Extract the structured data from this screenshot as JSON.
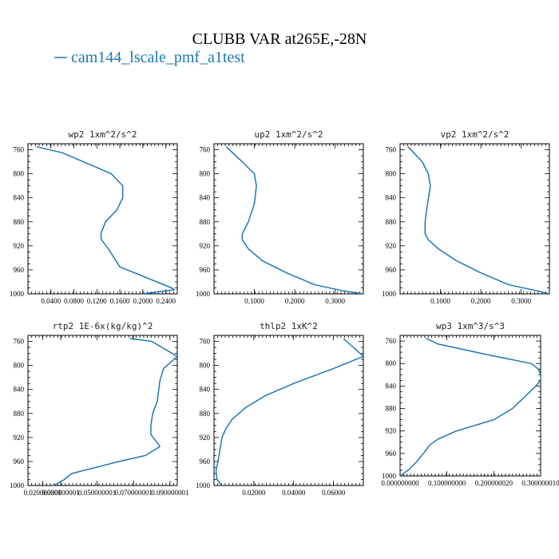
{
  "figure": {
    "title": "CLUBB VAR at265E,-28N",
    "legend": "cam144_lscale_pmf_a1test",
    "line_color": "#1f77b4"
  },
  "chart_data": [
    {
      "type": "line",
      "title": "wp2   1xm^2/s^2",
      "series": [
        {
          "name": "cam144_lscale_pmf_a1test",
          "x": [
            0.015,
            0.06,
            0.145,
            0.165,
            0.165,
            0.155,
            0.135,
            0.127,
            0.128,
            0.14,
            0.16,
            0.25,
            0.255,
            0.2
          ],
          "y": [
            755,
            765,
            800,
            820,
            840,
            860,
            880,
            900,
            910,
            925,
            955,
            990,
            993,
            1000
          ]
        }
      ],
      "xlim": [
        0.0,
        0.26
      ],
      "ylim": [
        1000,
        750
      ],
      "xticks": [
        0.04,
        0.08,
        0.12,
        0.16,
        0.2,
        0.24
      ],
      "xticklabels": [
        "0.0400",
        "0.0800",
        "0.1200",
        "0.1600",
        "0.2000",
        "0.2400"
      ],
      "yticks": [
        760,
        800,
        840,
        880,
        920,
        960,
        1000
      ],
      "yticklabels": [
        "760",
        "800",
        "840",
        "880",
        "920",
        "960",
        "1000"
      ]
    },
    {
      "type": "line",
      "title": "up2   1xm^2/s^2",
      "series": [
        {
          "name": "cam144_lscale_pmf_a1test",
          "x": [
            0.03,
            0.07,
            0.1,
            0.105,
            0.1,
            0.085,
            0.07,
            0.07,
            0.085,
            0.12,
            0.18,
            0.25,
            0.32,
            0.37
          ],
          "y": [
            755,
            780,
            800,
            820,
            850,
            880,
            900,
            910,
            925,
            945,
            965,
            985,
            995,
            1000
          ]
        }
      ],
      "xlim": [
        0.0,
        0.37
      ],
      "ylim": [
        1000,
        750
      ],
      "xticks": [
        0.1,
        0.2,
        0.3
      ],
      "xticklabels": [
        "0.1000",
        "0.2000",
        "0.3000"
      ],
      "yticks": [
        760,
        800,
        840,
        880,
        920,
        960,
        1000
      ],
      "yticklabels": [
        "760",
        "800",
        "840",
        "880",
        "920",
        "960",
        "1000"
      ]
    },
    {
      "type": "line",
      "title": "vp2   1xm^2/s^2",
      "series": [
        {
          "name": "cam144_lscale_pmf_a1test",
          "x": [
            0.02,
            0.055,
            0.07,
            0.075,
            0.068,
            0.062,
            0.062,
            0.07,
            0.095,
            0.14,
            0.2,
            0.27,
            0.34,
            0.37
          ],
          "y": [
            755,
            780,
            800,
            820,
            850,
            880,
            900,
            910,
            925,
            945,
            965,
            985,
            995,
            1000
          ]
        }
      ],
      "xlim": [
        0.0,
        0.37
      ],
      "ylim": [
        1000,
        750
      ],
      "xticks": [
        0.1,
        0.2,
        0.3
      ],
      "xticklabels": [
        "0.1000",
        "0.2000",
        "0.3000"
      ],
      "yticks": [
        760,
        800,
        840,
        880,
        920,
        960,
        1000
      ],
      "yticklabels": [
        "760",
        "800",
        "840",
        "880",
        "920",
        "960",
        "1000"
      ]
    },
    {
      "type": "line",
      "title": "rtp2   1E-6x(kg/kg)^2",
      "series": [
        {
          "name": "cam144_lscale_pmf_a1test",
          "x": [
            0.068,
            0.08,
            0.094,
            0.0865,
            0.0845,
            0.083,
            0.0805,
            0.0795,
            0.0795,
            0.0845,
            0.0765,
            0.062,
            0.036,
            0.032,
            0.026
          ],
          "y": [
            755,
            760,
            785,
            805,
            825,
            860,
            880,
            900,
            915,
            935,
            950,
            960,
            980,
            990,
            1000
          ]
        }
      ],
      "xlim": [
        0.012,
        0.094
      ],
      "ylim": [
        1000,
        750
      ],
      "xticks": [
        0.02,
        0.03,
        0.05,
        0.07,
        0.09
      ],
      "xticklabels": [
        "0.020000001",
        "0.030000001",
        "0.050000001",
        "0.070000001",
        "0.090000001"
      ],
      "yticks": [
        760,
        800,
        840,
        880,
        920,
        960,
        1000
      ],
      "yticklabels": [
        "760",
        "800",
        "840",
        "880",
        "920",
        "960",
        "1000"
      ]
    },
    {
      "type": "line",
      "title": "thlp2   1xK^2",
      "series": [
        {
          "name": "cam144_lscale_pmf_a1test",
          "x": [
            0.065,
            0.07,
            0.075,
            0.06,
            0.04,
            0.026,
            0.016,
            0.009,
            0.006,
            0.004,
            0.003,
            0.002,
            0.001,
            0.0015,
            0.004
          ],
          "y": [
            755,
            770,
            785,
            805,
            830,
            850,
            870,
            890,
            905,
            920,
            940,
            960,
            975,
            990,
            1000
          ]
        }
      ],
      "xlim": [
        0.0,
        0.075
      ],
      "ylim": [
        1000,
        750
      ],
      "xticks": [
        0.02,
        0.04,
        0.06
      ],
      "xticklabels": [
        "0.02000",
        "0.04000",
        "0.06000"
      ],
      "yticks": [
        760,
        800,
        840,
        880,
        920,
        960,
        1000
      ],
      "yticklabels": [
        "760",
        "800",
        "840",
        "880",
        "920",
        "960",
        "1000"
      ]
    },
    {
      "type": "line",
      "title": "wp3   1xm^3/s^3",
      "series": [
        {
          "name": "cam144_lscale_pmf_a1test",
          "x": [
            0.055,
            0.08,
            0.19,
            0.28,
            0.295,
            0.3,
            0.3,
            0.29,
            0.24,
            0.2,
            0.12,
            0.08,
            0.063,
            0.05,
            0.035,
            0.02,
            0.0
          ],
          "y": [
            755,
            765,
            785,
            800,
            810,
            820,
            830,
            840,
            880,
            900,
            920,
            935,
            945,
            960,
            975,
            988,
            1000
          ]
        }
      ],
      "xlim": [
        0.0,
        0.3
      ],
      "ylim": [
        1000,
        750
      ],
      "xticks": [
        0.0,
        0.1,
        0.2,
        0.3
      ],
      "xticklabels": [
        "0.000000000",
        "0.100000000",
        "0.200000020",
        "0.300000010"
      ],
      "yticks": [
        760,
        800,
        840,
        880,
        920,
        960,
        1000
      ],
      "yticklabels": [
        "760",
        "800",
        "840",
        "880",
        "920",
        "960",
        "1000"
      ]
    }
  ]
}
